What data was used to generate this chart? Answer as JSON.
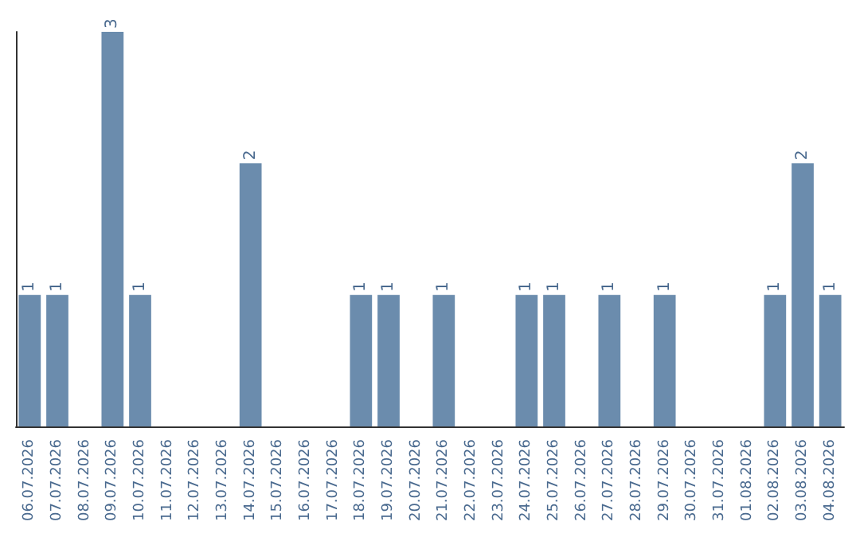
{
  "chart_data": {
    "type": "bar",
    "categories": [
      "06.07.2026",
      "07.07.2026",
      "08.07.2026",
      "09.07.2026",
      "10.07.2026",
      "11.07.2026",
      "12.07.2026",
      "13.07.2026",
      "14.07.2026",
      "15.07.2026",
      "16.07.2026",
      "17.07.2026",
      "18.07.2026",
      "19.07.2026",
      "20.07.2026",
      "21.07.2026",
      "22.07.2026",
      "23.07.2026",
      "24.07.2026",
      "25.07.2026",
      "26.07.2026",
      "27.07.2026",
      "28.07.2026",
      "29.07.2026",
      "30.07.2026",
      "31.07.2026",
      "01.08.2026",
      "02.08.2026",
      "03.08.2026",
      "04.08.2026"
    ],
    "values": [
      1,
      1,
      0,
      3,
      1,
      0,
      0,
      0,
      2,
      0,
      0,
      0,
      1,
      1,
      0,
      1,
      0,
      0,
      1,
      1,
      0,
      1,
      0,
      1,
      0,
      0,
      0,
      1,
      2,
      1
    ],
    "value_labels": [
      "1",
      "1",
      null,
      "3",
      "1",
      null,
      null,
      null,
      "2",
      null,
      null,
      null,
      "1",
      "1",
      null,
      "1",
      null,
      null,
      "1",
      "1",
      null,
      "1",
      null,
      "1",
      null,
      null,
      null,
      "1",
      "2",
      "1"
    ],
    "color": "#6b8cad",
    "grid": false
  }
}
